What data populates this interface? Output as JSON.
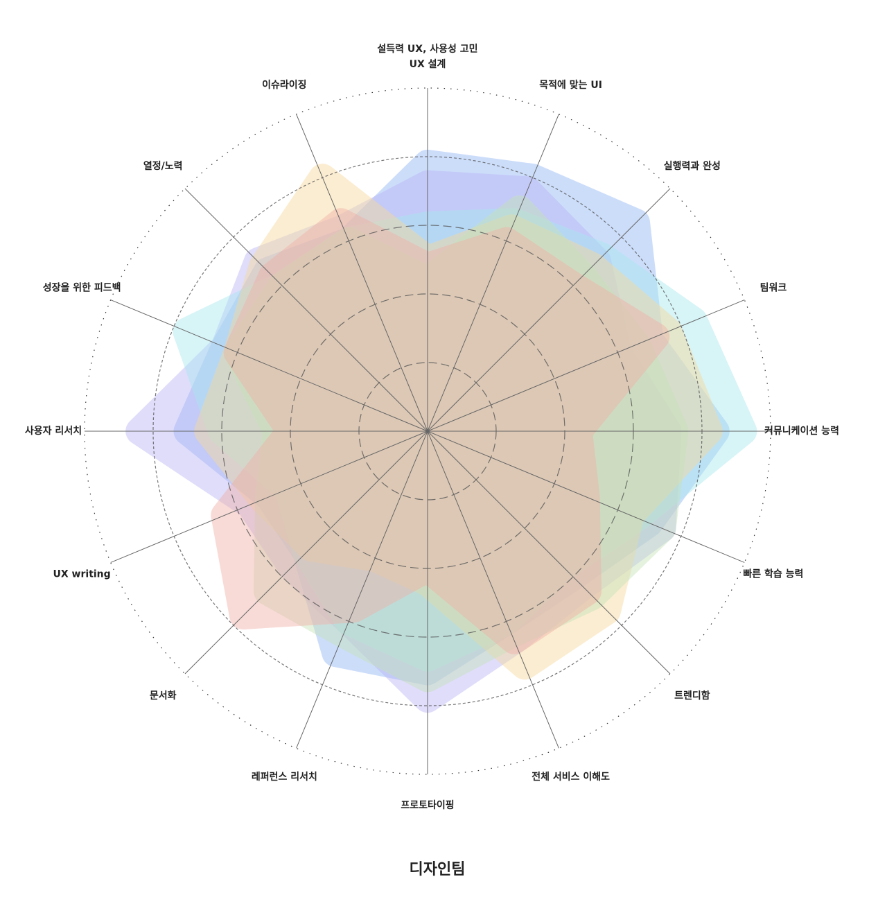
{
  "chart_data": {
    "type": "radar",
    "title": "디자인팀",
    "categories": [
      [
        "설득력 UX, 사용성 고민",
        "UX 설계"
      ],
      "목적에 맞는 UI",
      "실행력과 완성",
      "팀워크",
      "커뮤니케이션 능력",
      "빠른 학습 능력",
      "트렌디함",
      "전체 서비스 이해도",
      "프로토타이핑",
      "레퍼런스 리서치",
      "문서화",
      "UX writing",
      "사용자 리서치",
      "성장을 위한 피드백",
      "열정/노력",
      "이슈라이징"
    ],
    "ylim": [
      0,
      5
    ],
    "yticks": [
      1,
      2,
      3,
      4,
      5
    ],
    "series": [
      {
        "color": "#8fb4f5",
        "values": [
          3.9,
          4.0,
          4.3,
          3.5,
          4.2,
          3.5,
          3.0,
          3.0,
          3.5,
          3.5,
          2.5,
          2.5,
          3.5,
          3.2,
          3.3,
          3.0
        ]
      },
      {
        "color": "#b9b4f5",
        "values": [
          3.6,
          3.8,
          3.5,
          3.0,
          3.5,
          3.7,
          3.2,
          3.3,
          3.9,
          3.0,
          2.8,
          2.8,
          4.2,
          3.2,
          3.5,
          3.2
        ]
      },
      {
        "color": "#a8e8ef",
        "values": [
          3.0,
          3.3,
          3.6,
          4.2,
          4.6,
          3.3,
          2.8,
          3.0,
          3.3,
          3.0,
          2.5,
          2.2,
          3.0,
          3.8,
          3.0,
          3.0
        ]
      },
      {
        "color": "#f7d99a",
        "values": [
          2.5,
          3.2,
          3.4,
          3.8,
          4.1,
          3.2,
          3.7,
          3.7,
          2.2,
          2.0,
          2.4,
          2.6,
          3.2,
          3.0,
          3.4,
          4.0
        ]
      },
      {
        "color": "#c6e3b8",
        "values": [
          2.2,
          3.5,
          3.2,
          3.3,
          3.6,
          3.7,
          3.4,
          3.2,
          3.6,
          3.2,
          3.3,
          2.5,
          2.2,
          3.0,
          3.0,
          3.0
        ]
      },
      {
        "color": "#f0b0a8",
        "values": [
          2.4,
          3.0,
          3.0,
          3.6,
          2.2,
          2.5,
          3.3,
          3.3,
          2.0,
          2.8,
          3.8,
          3.2,
          2.0,
          3.0,
          3.2,
          3.3
        ]
      }
    ]
  }
}
